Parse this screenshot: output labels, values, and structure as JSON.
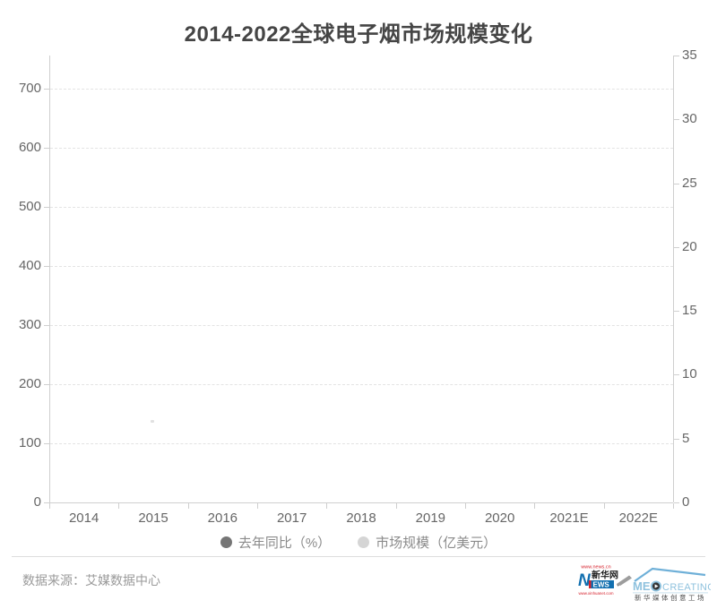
{
  "title": "2014-2022全球电子烟市场规模变化",
  "chart_data": {
    "type": "bar",
    "title": "2014-2022全球电子烟市场规模变化",
    "categories": [
      "2014",
      "2015",
      "2016",
      "2017",
      "2018",
      "2019",
      "2020",
      "2021E",
      "2022E"
    ],
    "series": [
      {
        "name": "去年同比（%）",
        "values": [],
        "legend_marker_color": "#757575",
        "axis": "right"
      },
      {
        "name": "市场规模（亿美元）",
        "values": [],
        "legend_marker_color": "#d5d5d5",
        "axis": "left"
      }
    ],
    "plot_rendered_empty": true,
    "left_axis": {
      "tick_labels": [
        "0",
        "100",
        "200",
        "300",
        "400",
        "500",
        "600",
        "700"
      ],
      "min": 0,
      "max": 700
    },
    "right_axis": {
      "tick_labels": [
        "0",
        "5",
        "10",
        "15",
        "20",
        "25",
        "30",
        "35"
      ],
      "min": 0,
      "max": 35
    },
    "grid": "horizontal dashed gridlines",
    "legend_position": "bottom",
    "xlabel": "",
    "ylabel": ""
  },
  "footer": {
    "source": "数据来源：艾媒数据中心",
    "logos": {
      "xinhua": {
        "top_url": "www.news.cn",
        "n_letter": "N",
        "name": "新华网",
        "news": "EWS",
        "bottom_url": "www.xinhuanet.com"
      },
      "medcreating": {
        "brand_left": "ME",
        "brand_right": "CREATING",
        "subtitle": "新华媒体创意工场"
      }
    }
  },
  "colors": {
    "title": "#454545",
    "axis_label": "#666666",
    "axis_line": "#cfcfcf",
    "gridline": "#e3e3e3",
    "legend_text": "#8b8b8b",
    "source_text": "#9a9a9a",
    "xinhua_red": "#d6232e",
    "xinhua_blue": "#1270b0",
    "med_blue": "#8fc2de"
  }
}
